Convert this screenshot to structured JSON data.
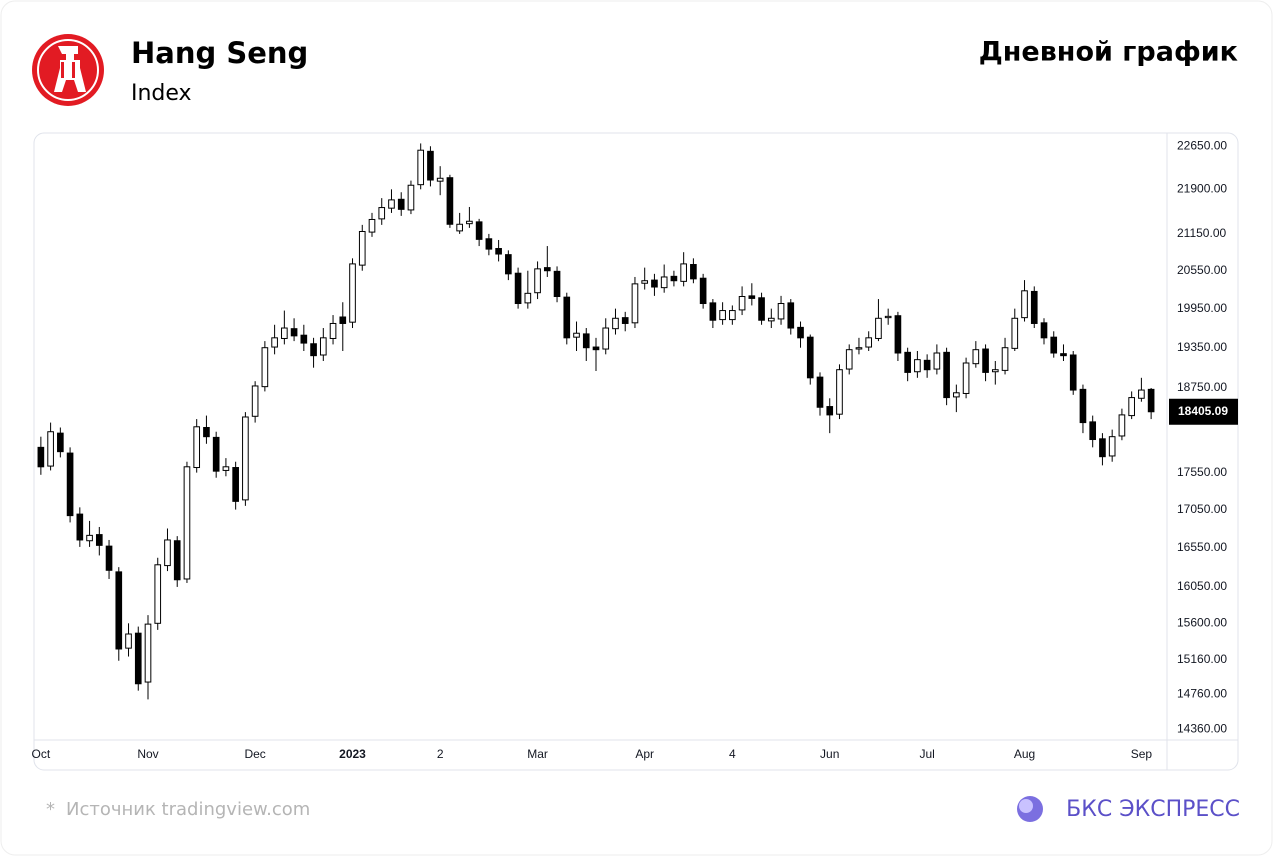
{
  "chart_data": {
    "type": "candlestick",
    "title": "Hang Seng",
    "subtitle": "Index",
    "chart_label": "Дневной график",
    "log_scale": true,
    "grid": false,
    "up_color": "#ffffff",
    "down_color": "#000000",
    "edge_color": "#000000",
    "ylim": [
      14240,
      22850
    ],
    "yticks": [
      {
        "value": 22650,
        "label": "22650.00"
      },
      {
        "value": 21900,
        "label": "21900.00"
      },
      {
        "value": 21150,
        "label": "21150.00"
      },
      {
        "value": 20550,
        "label": "20550.00"
      },
      {
        "value": 19950,
        "label": "19950.00"
      },
      {
        "value": 19350,
        "label": "19350.00"
      },
      {
        "value": 18750,
        "label": "18750.00"
      },
      {
        "value": 17550,
        "label": "17550.00"
      },
      {
        "value": 17050,
        "label": "17050.00"
      },
      {
        "value": 16550,
        "label": "16550.00"
      },
      {
        "value": 16050,
        "label": "16050.00"
      },
      {
        "value": 15600,
        "label": "15600.00"
      },
      {
        "value": 15160,
        "label": "15160.00"
      },
      {
        "value": 14760,
        "label": "14760.00"
      },
      {
        "value": 14360,
        "label": "14360.00"
      }
    ],
    "last_price": {
      "value": 18405.09,
      "label": "18405.09"
    },
    "categories": [
      "Oct",
      null,
      null,
      null,
      null,
      null,
      null,
      null,
      null,
      null,
      null,
      "Nov",
      null,
      null,
      null,
      null,
      null,
      null,
      null,
      null,
      null,
      null,
      "Dec",
      null,
      null,
      null,
      null,
      null,
      null,
      null,
      null,
      null,
      "2023",
      null,
      null,
      null,
      null,
      null,
      null,
      null,
      null,
      "2",
      null,
      null,
      null,
      null,
      null,
      null,
      null,
      null,
      null,
      "Mar",
      null,
      null,
      null,
      null,
      null,
      null,
      null,
      null,
      null,
      null,
      "Apr",
      null,
      null,
      null,
      null,
      null,
      null,
      null,
      null,
      "4",
      null,
      null,
      null,
      null,
      null,
      null,
      null,
      null,
      null,
      "Jun",
      null,
      null,
      null,
      null,
      null,
      null,
      null,
      null,
      null,
      "Jul",
      null,
      null,
      null,
      null,
      null,
      null,
      null,
      null,
      null,
      "Aug",
      null,
      null,
      null,
      null,
      null,
      null,
      null,
      null,
      null,
      null,
      null,
      "Sep",
      null
    ],
    "open": [
      17900,
      17640,
      18100,
      17820,
      16990,
      16640,
      16720,
      16570,
      16240,
      15300,
      15480,
      14900,
      15600,
      16320,
      16640,
      16150,
      17620,
      18180,
      18040,
      17580,
      17620,
      17180,
      18340,
      18770,
      19360,
      19490,
      19640,
      19540,
      19410,
      19240,
      19490,
      19820,
      19740,
      20640,
      21180,
      21400,
      21580,
      21730,
      21550,
      21980,
      22560,
      22040,
      22100,
      21200,
      21320,
      21350,
      21070,
      20910,
      20810,
      20510,
      20040,
      20200,
      20600,
      20540,
      20130,
      19510,
      19560,
      19360,
      19330,
      19640,
      19810,
      19730,
      20350,
      20400,
      20280,
      20460,
      20380,
      20650,
      20430,
      20040,
      19780,
      19780,
      19930,
      20150,
      20120,
      19760,
      19790,
      20040,
      19660,
      19510,
      18910,
      18480,
      18370,
      19030,
      19330,
      19360,
      19490,
      19810,
      19840,
      19280,
      18990,
      19160,
      19030,
      19280,
      18620,
      18670,
      19110,
      19330,
      18990,
      19010,
      19340,
      19810,
      20220,
      19730,
      19510,
      19260,
      19240,
      18730,
      18260,
      18020,
      17780,
      18060,
      18350,
      18600,
      18730
    ],
    "high": [
      18050,
      18250,
      18180,
      17900,
      17080,
      16900,
      16820,
      16650,
      16300,
      15600,
      15560,
      15700,
      16420,
      16800,
      16700,
      17700,
      18300,
      18350,
      18120,
      17750,
      17700,
      18400,
      18850,
      19450,
      19700,
      19920,
      19800,
      19700,
      19500,
      19650,
      19850,
      20050,
      20750,
      21300,
      21500,
      21750,
      21900,
      21850,
      22050,
      22700,
      22650,
      22300,
      22150,
      21500,
      21600,
      21400,
      21150,
      21050,
      20880,
      20600,
      20550,
      20700,
      20950,
      20620,
      20200,
      19750,
      19650,
      19500,
      19800,
      19950,
      19900,
      20450,
      20600,
      20500,
      20650,
      20550,
      20850,
      20750,
      20500,
      20100,
      20050,
      20000,
      20300,
      20350,
      20200,
      19950,
      20150,
      20100,
      19750,
      19550,
      18980,
      18600,
      19100,
      19400,
      19500,
      19600,
      20100,
      19950,
      19900,
      19350,
      19300,
      19250,
      19400,
      19350,
      18800,
      19200,
      19450,
      19400,
      19150,
      19500,
      19950,
      20400,
      20300,
      19800,
      19600,
      19400,
      19300,
      18800,
      18350,
      18100,
      18150,
      18450,
      18700,
      18900,
      18750
    ],
    "low": [
      17520,
      17580,
      17760,
      16880,
      16560,
      16560,
      16450,
      16150,
      15150,
      15200,
      14800,
      14700,
      15520,
      16250,
      16050,
      16100,
      17550,
      17950,
      17480,
      17500,
      17050,
      17100,
      18250,
      18700,
      19250,
      19400,
      19450,
      19300,
      19050,
      19150,
      19400,
      19300,
      19650,
      20550,
      21100,
      21300,
      21500,
      21450,
      21480,
      21900,
      21950,
      21800,
      21250,
      21150,
      21250,
      20950,
      20800,
      20700,
      20400,
      19950,
      19950,
      20100,
      20450,
      20050,
      19400,
      19300,
      19150,
      19000,
      19250,
      19550,
      19600,
      19650,
      20250,
      20150,
      20200,
      20300,
      20300,
      20350,
      19950,
      19650,
      19700,
      19700,
      19850,
      20000,
      19700,
      19650,
      19700,
      19550,
      19350,
      18800,
      18350,
      18100,
      18300,
      18950,
      19250,
      19300,
      19450,
      19700,
      19150,
      18850,
      18900,
      18900,
      18950,
      18500,
      18400,
      18600,
      19050,
      18850,
      18800,
      18950,
      19300,
      19750,
      19650,
      19400,
      19200,
      19150,
      18650,
      18100,
      17900,
      17650,
      17700,
      18000,
      18300,
      18550,
      18300
    ],
    "close": [
      17630,
      18120,
      17840,
      16970,
      16650,
      16710,
      16580,
      16260,
      15290,
      15470,
      14880,
      15590,
      16330,
      16650,
      16140,
      17630,
      18190,
      18050,
      17570,
      17630,
      17160,
      18330,
      18780,
      19350,
      19500,
      19650,
      19530,
      19420,
      19230,
      19500,
      19720,
      19720,
      20660,
      21190,
      21390,
      21590,
      21720,
      21560,
      21970,
      22580,
      22060,
      22090,
      21310,
      21310,
      21360,
      21060,
      20900,
      20820,
      20500,
      20030,
      20190,
      20580,
      20550,
      20140,
      19500,
      19570,
      19350,
      19320,
      19650,
      19800,
      19720,
      20340,
      20390,
      20290,
      20450,
      20390,
      20660,
      20420,
      20030,
      19770,
      19920,
      19920,
      20140,
      20110,
      19770,
      19800,
      20030,
      19650,
      19500,
      18900,
      18470,
      18360,
      19020,
      19320,
      19350,
      19500,
      19800,
      19830,
      19270,
      18980,
      19170,
      19020,
      19270,
      18610,
      18680,
      19120,
      19320,
      18980,
      19020,
      19350,
      19800,
      20230,
      19720,
      19500,
      19270,
      19230,
      18720,
      18250,
      18010,
      17770,
      18050,
      18360,
      18610,
      18720,
      18405.09
    ]
  },
  "footer": {
    "mark": "*",
    "source": "Источник tradingview.com",
    "brand": "БКС ЭКСПРЕСС"
  }
}
